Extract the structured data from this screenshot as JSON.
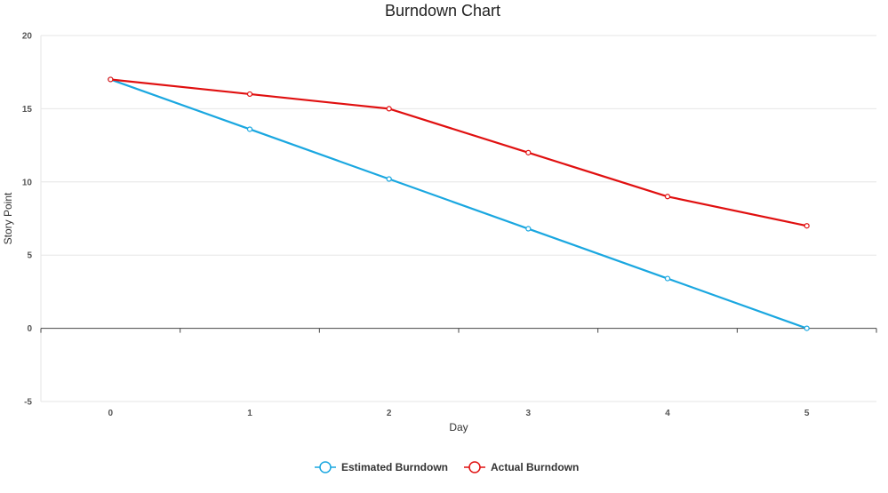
{
  "chart_data": {
    "type": "line",
    "title": "Burndown Chart",
    "xlabel": "Day",
    "ylabel": "Story Point",
    "x": [
      0,
      1,
      2,
      3,
      4,
      5
    ],
    "xlim": [
      -0.5,
      5.5
    ],
    "ylim": [
      -5,
      20
    ],
    "yticks": [
      -5,
      0,
      5,
      10,
      15,
      20
    ],
    "grid": true,
    "legend_position": "bottom",
    "series": [
      {
        "name": "Estimated Burndown",
        "color": "#1aa7e0",
        "values": [
          17,
          13.6,
          10.2,
          6.8,
          3.4,
          0
        ]
      },
      {
        "name": "Actual Burndown",
        "color": "#e01010",
        "values": [
          17,
          16,
          15,
          12,
          9,
          7
        ]
      }
    ]
  }
}
